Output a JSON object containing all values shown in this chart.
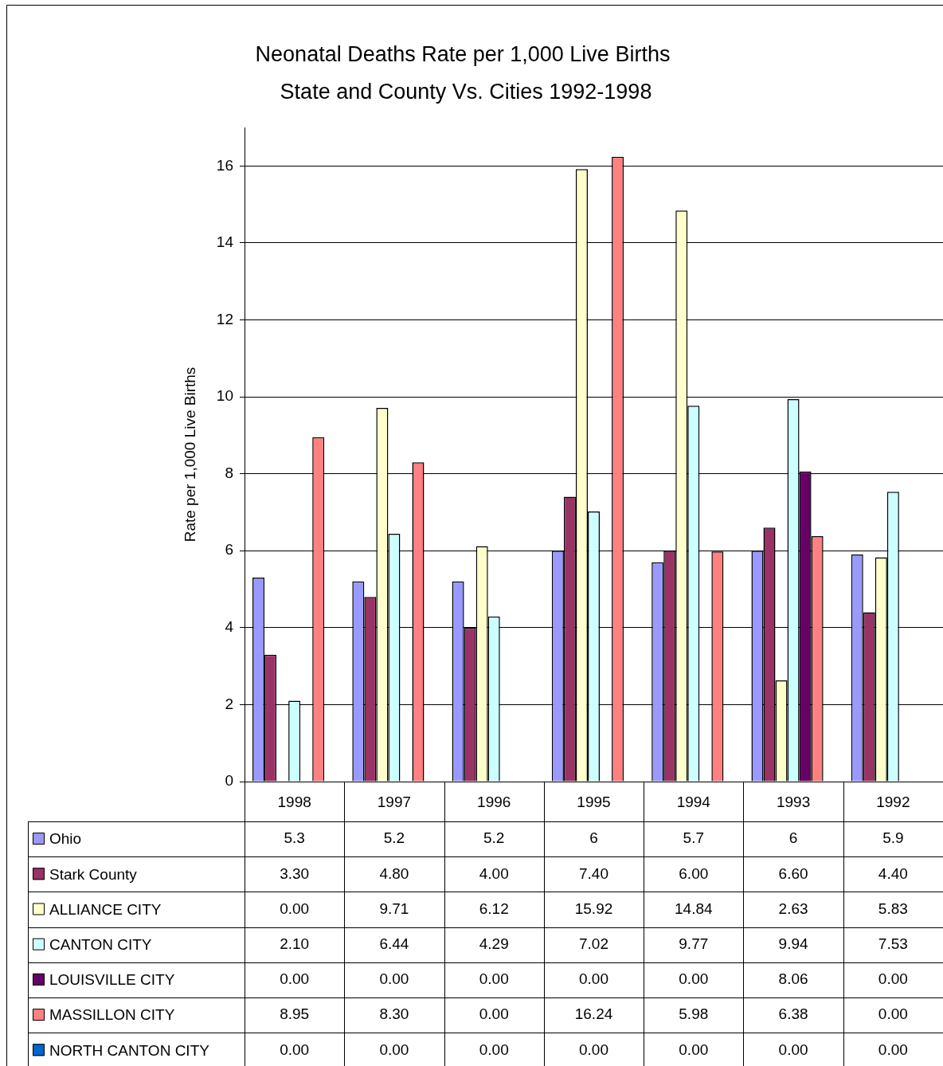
{
  "chart_data": {
    "type": "bar",
    "title": "Neonatal Deaths Rate per 1,000 Live Births",
    "subtitle": "State and County Vs. Cities 1992-1998",
    "ylabel": "Rate per 1,000 Live Births",
    "categories": [
      "1998",
      "1997",
      "1996",
      "1995",
      "1994",
      "1993",
      "1992"
    ],
    "series": [
      {
        "name": "Ohio",
        "color": "#9999ff",
        "values": [
          5.3,
          5.2,
          5.2,
          6,
          5.7,
          6,
          5.9
        ],
        "value_labels": [
          "5.3",
          "5.2",
          "5.2",
          "6",
          "5.7",
          "6",
          "5.9"
        ]
      },
      {
        "name": "Stark County",
        "color": "#993366",
        "values": [
          3.3,
          4.8,
          4.0,
          7.4,
          6.0,
          6.6,
          4.4
        ],
        "value_labels": [
          "3.30",
          "4.80",
          "4.00",
          "7.40",
          "6.00",
          "6.60",
          "4.40"
        ]
      },
      {
        "name": "ALLIANCE CITY",
        "color": "#ffffcc",
        "values": [
          0,
          9.71,
          6.12,
          15.92,
          14.84,
          2.63,
          5.83
        ],
        "value_labels": [
          "0.00",
          "9.71",
          "6.12",
          "15.92",
          "14.84",
          "2.63",
          "5.83"
        ]
      },
      {
        "name": "CANTON CITY",
        "color": "#ccffff",
        "values": [
          2.1,
          6.44,
          4.29,
          7.02,
          9.77,
          9.94,
          7.53
        ],
        "value_labels": [
          "2.10",
          "6.44",
          "4.29",
          "7.02",
          "9.77",
          "9.94",
          "7.53"
        ]
      },
      {
        "name": "LOUISVILLE CITY",
        "color": "#660066",
        "values": [
          0,
          0,
          0,
          0,
          0,
          8.06,
          0
        ],
        "value_labels": [
          "0.00",
          "0.00",
          "0.00",
          "0.00",
          "0.00",
          "8.06",
          "0.00"
        ]
      },
      {
        "name": "MASSILLON CITY",
        "color": "#ff8080",
        "values": [
          8.95,
          8.3,
          0,
          16.24,
          5.98,
          6.38,
          0
        ],
        "value_labels": [
          "8.95",
          "8.30",
          "0.00",
          "16.24",
          "5.98",
          "6.38",
          "0.00"
        ]
      },
      {
        "name": "NORTH CANTON CITY",
        "color": "#0066cc",
        "values": [
          0,
          0,
          0,
          0,
          0,
          0,
          0
        ],
        "value_labels": [
          "0.00",
          "0.00",
          "0.00",
          "0.00",
          "0.00",
          "0.00",
          "0.00"
        ]
      }
    ],
    "ylim": [
      0,
      17
    ],
    "yticks": [
      0,
      2,
      4,
      6,
      8,
      10,
      12,
      14,
      16
    ],
    "grid": "y",
    "legend": "bottom"
  }
}
